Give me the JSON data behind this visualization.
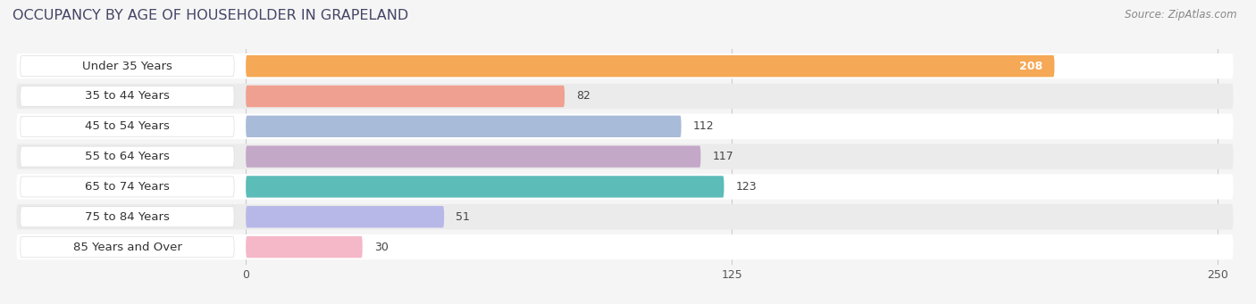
{
  "title": "OCCUPANCY BY AGE OF HOUSEHOLDER IN GRAPELAND",
  "source": "Source: ZipAtlas.com",
  "categories": [
    "Under 35 Years",
    "35 to 44 Years",
    "45 to 54 Years",
    "55 to 64 Years",
    "65 to 74 Years",
    "75 to 84 Years",
    "85 Years and Over"
  ],
  "values": [
    208,
    82,
    112,
    117,
    123,
    51,
    30
  ],
  "bar_colors": [
    "#F5A855",
    "#F0A090",
    "#A8BBD8",
    "#C4A8C8",
    "#5BBCB8",
    "#B8B8E8",
    "#F5B8C8"
  ],
  "xlim_left": -60,
  "xlim_right": 255,
  "xticks": [
    0,
    125,
    250
  ],
  "bar_height": 0.72,
  "background_color": "#f5f5f5",
  "row_bg_light": "#ffffff",
  "row_bg_dark": "#ebebeb",
  "title_fontsize": 11.5,
  "label_fontsize": 9.5,
  "value_fontsize": 9,
  "source_fontsize": 8.5
}
